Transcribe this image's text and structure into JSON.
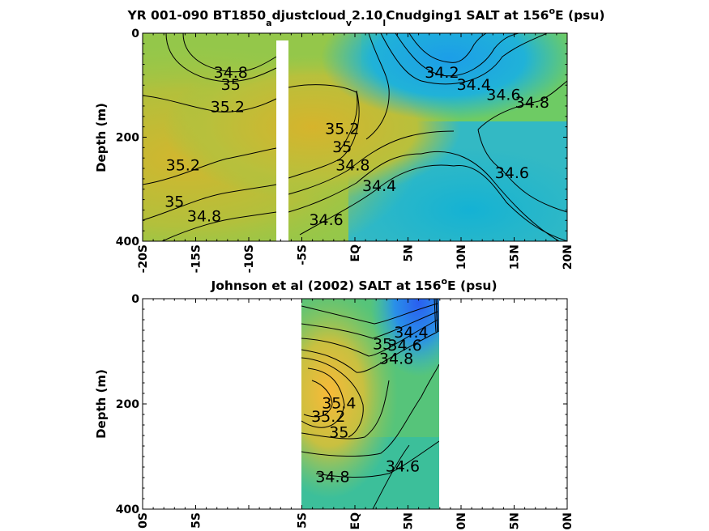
{
  "chart_data": [
    {
      "type": "heatmap",
      "panel": "model",
      "title": {
        "main_a": "YR 001-090 BT1850",
        "sub_a": "a",
        "main_b": "djustcloud",
        "sub_b": "v",
        "main_c": "2.10",
        "sub_c": "l",
        "main_d": "Cnudging1 SALT at 156",
        "sup": "o",
        "main_e": "E (psu)"
      },
      "ylabel": "Depth (m)",
      "xlim": [
        -20,
        20
      ],
      "ylim": [
        400,
        0
      ],
      "x_ticks": [
        -20,
        -15,
        -10,
        -5,
        0,
        5,
        10,
        15,
        20
      ],
      "x_tick_labels": [
        "-20S",
        "-15S",
        "-10S",
        "-5S",
        "EQ",
        "5N",
        "10N",
        "15N",
        "20N"
      ],
      "y_ticks": [
        0,
        200,
        400
      ],
      "y_tick_labels": [
        "0",
        "200",
        "400"
      ],
      "data_gap_lat": [
        -7.5,
        -6.5
      ],
      "contour_labels": [
        {
          "text": "34.8",
          "lat": -11.7,
          "depth": 77
        },
        {
          "text": "35",
          "lat": -11.7,
          "depth": 100
        },
        {
          "text": "35.2",
          "lat": -12.0,
          "depth": 143
        },
        {
          "text": "35.2",
          "lat": -16.2,
          "depth": 255
        },
        {
          "text": "35",
          "lat": -17.0,
          "depth": 325
        },
        {
          "text": "34.8",
          "lat": -14.2,
          "depth": 353
        },
        {
          "text": "35.2",
          "lat": -1.2,
          "depth": 185
        },
        {
          "text": "35",
          "lat": -1.2,
          "depth": 220
        },
        {
          "text": "34.8",
          "lat": -0.2,
          "depth": 255
        },
        {
          "text": "34.4",
          "lat": 2.3,
          "depth": 295
        },
        {
          "text": "34.6",
          "lat": -2.7,
          "depth": 360
        },
        {
          "text": "34.2",
          "lat": 8.2,
          "depth": 77
        },
        {
          "text": "34.4",
          "lat": 11.2,
          "depth": 100
        },
        {
          "text": "34.6",
          "lat": 14.0,
          "depth": 120
        },
        {
          "text": "34.8",
          "lat": 16.7,
          "depth": 135
        },
        {
          "text": "34.6",
          "lat": 14.8,
          "depth": 270
        }
      ]
    },
    {
      "type": "heatmap",
      "panel": "observations",
      "title": {
        "main": "Johnson et al (2002) SALT at 156",
        "sup": "o",
        "main_b": "E (psu)"
      },
      "ylabel": "Depth (m)",
      "xlim": [
        -20,
        20
      ],
      "ylim": [
        400,
        0
      ],
      "data_lat_range": [
        -5,
        8
      ],
      "x_ticks": [
        -20,
        -15,
        -10,
        -5,
        0,
        5,
        10,
        15,
        20
      ],
      "x_tick_labels": [
        "0S",
        "5S",
        "",
        "5S",
        "EQ",
        "5N",
        "0N",
        "5N",
        "0N"
      ],
      "y_ticks": [
        0,
        200,
        400
      ],
      "y_tick_labels": [
        "0",
        "200",
        "400"
      ],
      "contour_labels": [
        {
          "text": "34.4",
          "lat": 5.3,
          "depth": 65
        },
        {
          "text": "34.6",
          "lat": 4.7,
          "depth": 90
        },
        {
          "text": "34.8",
          "lat": 3.9,
          "depth": 115
        },
        {
          "text": "35",
          "lat": 2.6,
          "depth": 88
        },
        {
          "text": "35.4",
          "lat": -1.5,
          "depth": 200
        },
        {
          "text": "35.2",
          "lat": -2.5,
          "depth": 225
        },
        {
          "text": "35",
          "lat": -1.5,
          "depth": 255
        },
        {
          "text": "34.8",
          "lat": -2.1,
          "depth": 340
        },
        {
          "text": "34.6",
          "lat": 4.5,
          "depth": 320
        }
      ]
    }
  ]
}
